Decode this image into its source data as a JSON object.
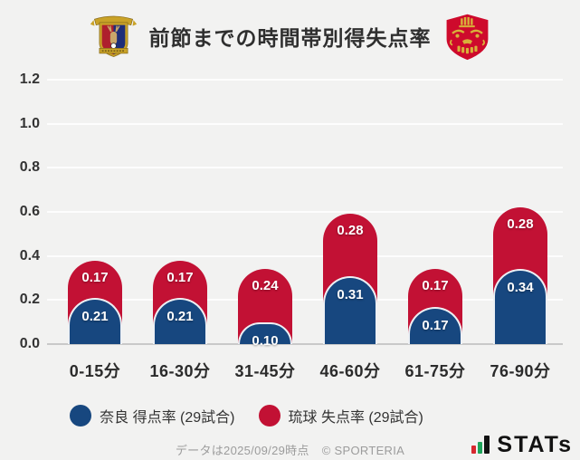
{
  "header": {
    "title": "前節までの時間帯別得失点率",
    "left_logo": "nara-club-crest",
    "right_logo": "fc-ryukyu-crest"
  },
  "chart_data": {
    "type": "bar",
    "stacked": true,
    "title": "前節までの時間帯別得失点率",
    "categories": [
      "0-15分",
      "16-30分",
      "31-45分",
      "46-60分",
      "61-75分",
      "76-90分"
    ],
    "series": [
      {
        "name": "奈良 得点率 (29試合)",
        "color": "#17477f",
        "values": [
          0.21,
          0.21,
          0.1,
          0.31,
          0.17,
          0.34
        ]
      },
      {
        "name": "琉球 失点率 (29試合)",
        "color": "#c21134",
        "values": [
          0.17,
          0.17,
          0.24,
          0.28,
          0.17,
          0.28
        ]
      }
    ],
    "ylim": [
      0,
      1.2
    ],
    "yticks": [
      "0.0",
      "0.2",
      "0.4",
      "0.6",
      "0.8",
      "1.0",
      "1.2"
    ],
    "grid": true,
    "legend_position": "bottom",
    "value_label_format": "0.00"
  },
  "footer": {
    "note": "データは2025/09/29時点",
    "copyright": "© SPORTERIA",
    "brand": "STATs"
  }
}
